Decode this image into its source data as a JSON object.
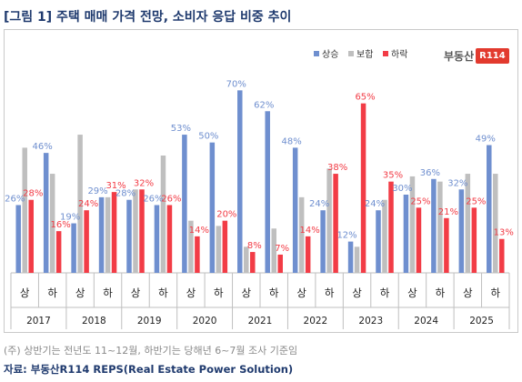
{
  "header": {
    "title": "[그림 1] 주택 매매 가격 전망, 소비자 응답 비중 추이"
  },
  "footer": {
    "note": "(주) 상반기는 전년도 11~12월, 하반기는 당해년 6~7월 조사 기준임",
    "source": "자료: 부동산R114 REPS(Real Estate Power Solution)"
  },
  "logo": {
    "text": "부동산",
    "box": "R114"
  },
  "chart_data": {
    "type": "bar",
    "halves": [
      "상",
      "하"
    ],
    "years": [
      "2017",
      "2018",
      "2019",
      "2020",
      "2021",
      "2022",
      "2023",
      "2024",
      "2025"
    ],
    "categories": [
      "상",
      "하",
      "상",
      "하",
      "상",
      "하",
      "상",
      "하",
      "상",
      "하",
      "상",
      "하",
      "상",
      "하",
      "상",
      "하",
      "상",
      "하"
    ],
    "series": [
      {
        "name": "상승",
        "color": "#6f8fcf",
        "values": [
          26,
          46,
          19,
          29,
          28,
          26,
          53,
          50,
          70,
          62,
          48,
          24,
          12,
          24,
          30,
          36,
          32,
          49
        ]
      },
      {
        "name": "보합",
        "color": "#bfbfbf",
        "values": [
          48,
          38,
          53,
          29,
          32,
          45,
          20,
          18,
          10,
          17,
          29,
          40,
          10,
          28,
          37,
          35,
          38,
          38
        ]
      },
      {
        "name": "하락",
        "color": "#f23c46",
        "values": [
          28,
          16,
          24,
          31,
          32,
          26,
          14,
          20,
          8,
          7,
          14,
          38,
          65,
          35,
          25,
          21,
          25,
          13
        ]
      }
    ],
    "ylim": [
      0,
      75
    ],
    "legend": {
      "position": "top-right",
      "labels": [
        "상승",
        "보합",
        "하락"
      ]
    },
    "data_labels": [
      "26%",
      "46%",
      "19%",
      "29%",
      "28%",
      "26%",
      "53%",
      "50%",
      "70%",
      "62%",
      "48%",
      "24%",
      "12%",
      "24%",
      "30%",
      "36%",
      "32%",
      "49%",
      "28%",
      "16%",
      "24%",
      "31%",
      "32%",
      "26%",
      "14%",
      "20%",
      "8%",
      "7%",
      "14%",
      "38%",
      "65%",
      "35%",
      "25%",
      "21%",
      "25%",
      "13%"
    ]
  }
}
